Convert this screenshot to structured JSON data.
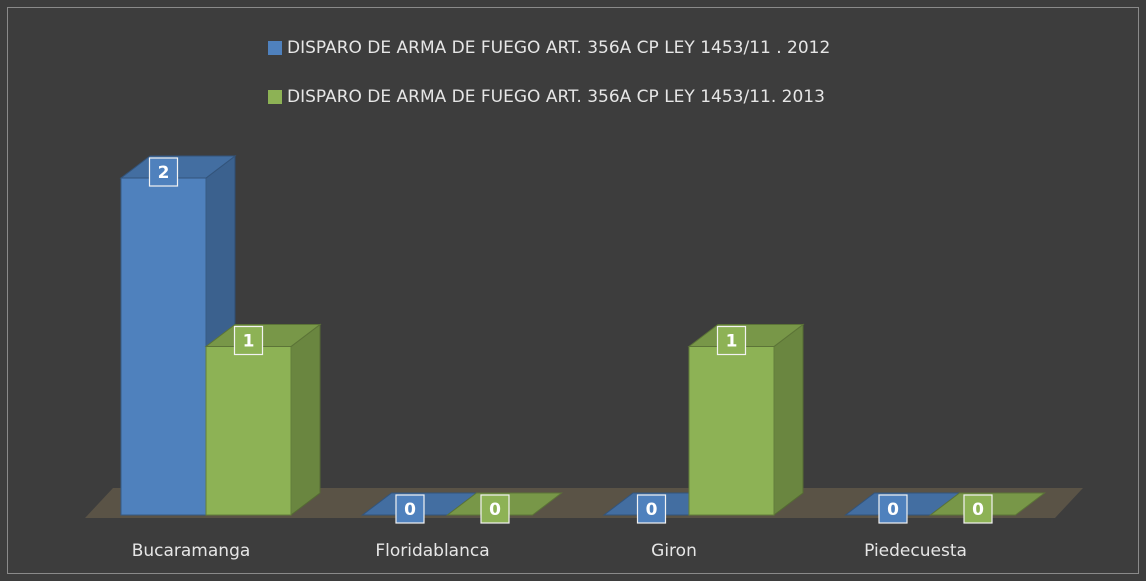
{
  "chart_data": {
    "type": "bar3d",
    "categories": [
      "Bucaramanga",
      "Floridablanca",
      "Giron",
      "Piedecuesta"
    ],
    "series": [
      {
        "name": "DISPARO DE ARMA DE FUEGO ART. 356A CP LEY 1453/11 . 2012",
        "color": "#4f81bd",
        "values": [
          2,
          0,
          0,
          0
        ]
      },
      {
        "name": "DISPARO DE ARMA DE FUEGO ART. 356A CP LEY 1453/11. 2013",
        "color": "#8db255",
        "values": [
          1,
          0,
          1,
          0
        ]
      }
    ]
  }
}
